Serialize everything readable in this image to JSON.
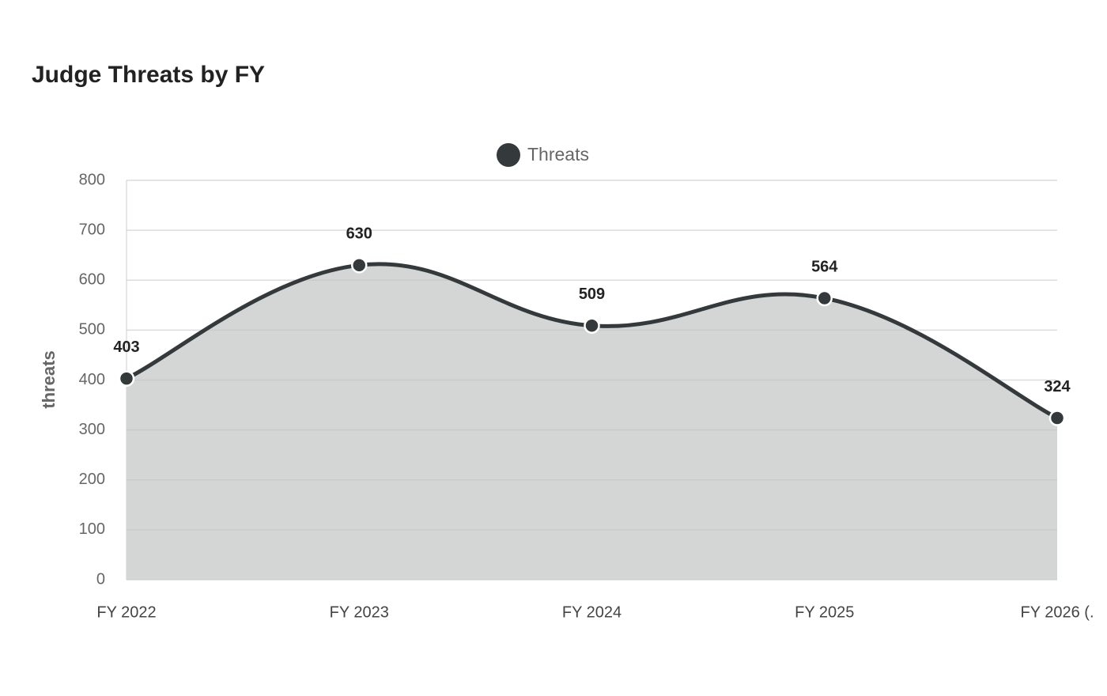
{
  "chart_data": {
    "type": "line",
    "title": "Judge Threats by FY",
    "y_label": "threats",
    "categories": [
      "FY 2022",
      "FY 2023",
      "FY 2024",
      "FY 2025",
      "FY 2026 (."
    ],
    "series": [
      {
        "name": "Threats",
        "color": "#343a3c",
        "fill_color": "#d4d6d6",
        "values": [
          403,
          630,
          509,
          564,
          324
        ]
      }
    ],
    "ylim": [
      0,
      800
    ],
    "yticks": [
      0,
      100,
      200,
      300,
      400,
      500,
      600,
      700,
      800
    ],
    "grid": true,
    "fill": true,
    "smooth": true,
    "legend": "top",
    "data_labels": true
  }
}
